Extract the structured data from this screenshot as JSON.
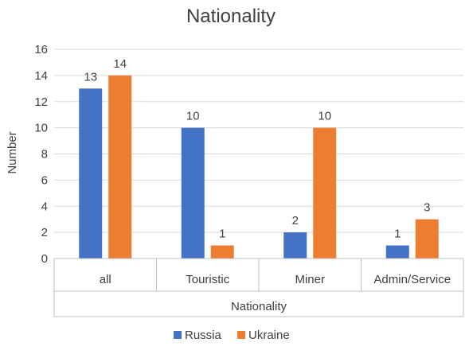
{
  "chart_data": {
    "type": "bar",
    "title": "Nationality",
    "xlabel": "Nationality",
    "ylabel": "Number",
    "categories": [
      "all",
      "Touristic",
      "Miner",
      "Admin/Service"
    ],
    "series": [
      {
        "name": "Russia",
        "color": "#4472c4",
        "values": [
          13,
          10,
          2,
          1
        ]
      },
      {
        "name": "Ukraine",
        "color": "#ed7d31",
        "values": [
          14,
          1,
          10,
          3
        ]
      }
    ],
    "ylim": [
      0,
      16
    ],
    "yticks": [
      0,
      2,
      4,
      6,
      8,
      10,
      12,
      14,
      16
    ],
    "grid": true,
    "legend_position": "bottom"
  }
}
